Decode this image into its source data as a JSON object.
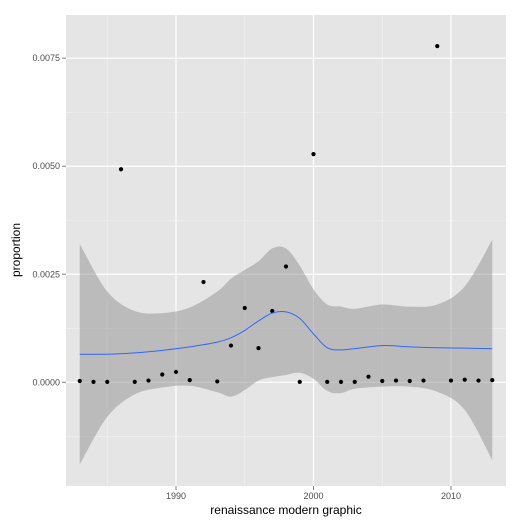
{
  "chart_data": {
    "type": "scatter",
    "title": "",
    "xlabel": "renaissance modern graphic",
    "ylabel": "proportion",
    "xlim": [
      1982,
      2014
    ],
    "ylim": [
      -0.0024,
      0.0085
    ],
    "x_ticks": [
      1990,
      2000,
      2010
    ],
    "x_tick_labels": [
      "1990",
      "2000",
      "2010"
    ],
    "y_ticks": [
      0.0,
      0.0025,
      0.005,
      0.0075
    ],
    "y_tick_labels": [
      "0.0000",
      "0.0025",
      "0.0050",
      "0.0075"
    ],
    "grid": true,
    "points": [
      {
        "x": 1983,
        "y": 3e-05
      },
      {
        "x": 1984,
        "y": 1e-05
      },
      {
        "x": 1985,
        "y": 1e-05
      },
      {
        "x": 1986,
        "y": 0.00493
      },
      {
        "x": 1987,
        "y": 1e-05
      },
      {
        "x": 1988,
        "y": 4e-05
      },
      {
        "x": 1989,
        "y": 0.00018
      },
      {
        "x": 1990,
        "y": 0.00024
      },
      {
        "x": 1991,
        "y": 5e-05
      },
      {
        "x": 1992,
        "y": 0.00232
      },
      {
        "x": 1993,
        "y": 2e-05
      },
      {
        "x": 1994,
        "y": 0.00085
      },
      {
        "x": 1995,
        "y": 0.00172
      },
      {
        "x": 1996,
        "y": 0.00079
      },
      {
        "x": 1997,
        "y": 0.00165
      },
      {
        "x": 1998,
        "y": 0.00268
      },
      {
        "x": 1999,
        "y": 1e-05
      },
      {
        "x": 2000,
        "y": 0.00528
      },
      {
        "x": 2001,
        "y": 1e-05
      },
      {
        "x": 2002,
        "y": 1e-05
      },
      {
        "x": 2003,
        "y": 1e-05
      },
      {
        "x": 2004,
        "y": 0.00013
      },
      {
        "x": 2005,
        "y": 3e-05
      },
      {
        "x": 2006,
        "y": 4e-05
      },
      {
        "x": 2007,
        "y": 3e-05
      },
      {
        "x": 2008,
        "y": 4e-05
      },
      {
        "x": 2009,
        "y": 0.00778
      },
      {
        "x": 2010,
        "y": 4e-05
      },
      {
        "x": 2011,
        "y": 6e-05
      },
      {
        "x": 2012,
        "y": 4e-05
      },
      {
        "x": 2013,
        "y": 5e-05
      }
    ],
    "smooth": {
      "x": [
        1983,
        1985,
        1987,
        1989,
        1991,
        1993,
        1994,
        1995,
        1996,
        1997,
        1998,
        1999,
        2000,
        2001,
        2002,
        2003,
        2005,
        2007,
        2009,
        2011,
        2013
      ],
      "y": [
        0.00065,
        0.00065,
        0.00068,
        0.00074,
        0.00082,
        0.00093,
        0.00103,
        0.0012,
        0.00142,
        0.0016,
        0.00163,
        0.00148,
        0.00112,
        0.0008,
        0.00075,
        0.00078,
        0.00085,
        0.00082,
        0.0008,
        0.00079,
        0.00078
      ],
      "upper": [
        0.0032,
        0.0021,
        0.00165,
        0.0016,
        0.00173,
        0.0021,
        0.0024,
        0.0026,
        0.0028,
        0.0031,
        0.0031,
        0.0027,
        0.00215,
        0.0018,
        0.00175,
        0.0017,
        0.0018,
        0.00175,
        0.0018,
        0.00222,
        0.0033
      ],
      "lower": [
        -0.0019,
        -0.0008,
        -0.00028,
        -0.00012,
        -8e-05,
        -0.00023,
        -0.00033,
        -0.00018,
        4e-05,
        0.00012,
        0.00017,
        0.00022,
        8e-05,
        -0.0002,
        -0.00025,
        -0.00015,
        -0.0001,
        -0.0001,
        -0.00022,
        -0.00064,
        -0.0018
      ]
    },
    "colors": {
      "panel": "#e5e5e5",
      "grid_major": "#ffffff",
      "grid_minor": "#f2f2f2",
      "point": "#000000",
      "smooth_line": "#3366ff",
      "ribbon": "#999999"
    }
  }
}
